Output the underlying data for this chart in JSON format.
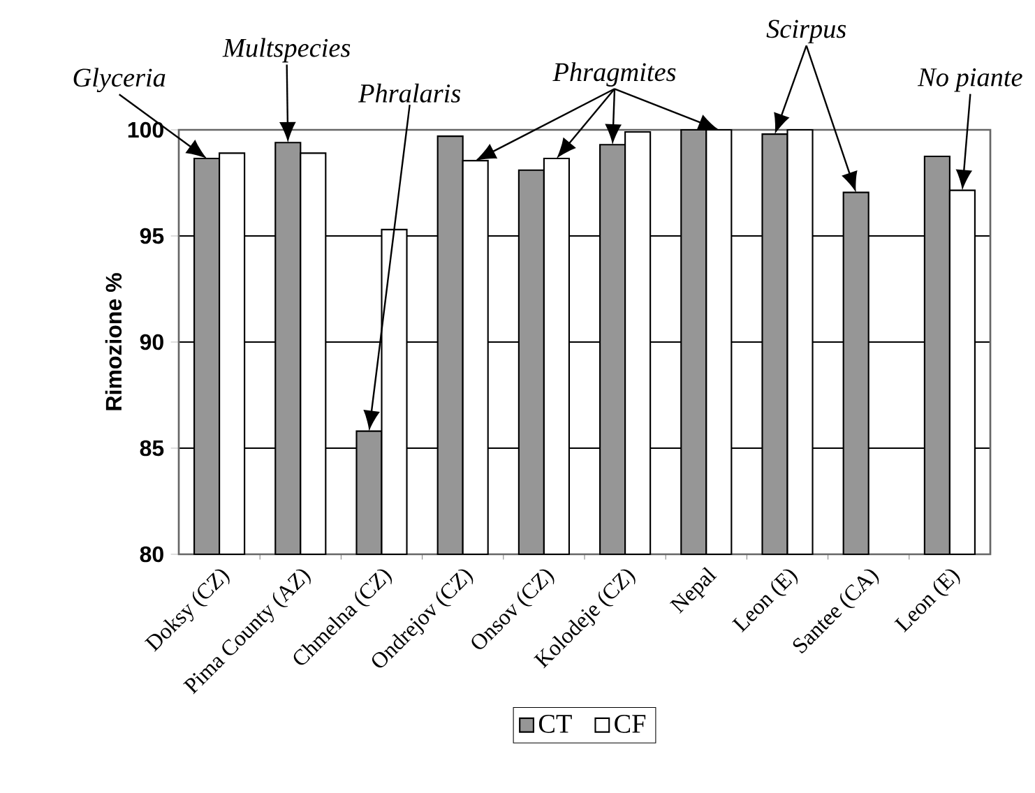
{
  "chart_data": {
    "type": "bar",
    "ylabel": "Rimozione %",
    "categories": [
      "Doksy (CZ)",
      "Pima County (AZ)",
      "Chmelna (CZ)",
      "Ondrejov (CZ)",
      "Onsov (CZ)",
      "Kolodeje (CZ)",
      "Nepal",
      "Leon (E)",
      "Santee (CA)",
      "Leon (E)"
    ],
    "series": [
      {
        "name": "CT",
        "color": "#969696",
        "values": [
          98.65,
          99.4,
          85.8,
          99.7,
          98.1,
          99.3,
          100,
          99.8,
          97.05,
          98.75
        ]
      },
      {
        "name": "CF",
        "color": "#ffffff",
        "values": [
          98.9,
          98.9,
          95.3,
          98.55,
          98.65,
          99.9,
          100,
          100,
          null,
          97.15
        ]
      }
    ],
    "ylim": [
      80,
      100
    ],
    "yticks": [
      80,
      85,
      90,
      95,
      100
    ],
    "grid": "y",
    "legend": "bottom",
    "annotations": [
      "Glyceria",
      "Multspecies",
      "Phralaris",
      "Phragmites",
      "Scirpus",
      "No piante"
    ]
  }
}
